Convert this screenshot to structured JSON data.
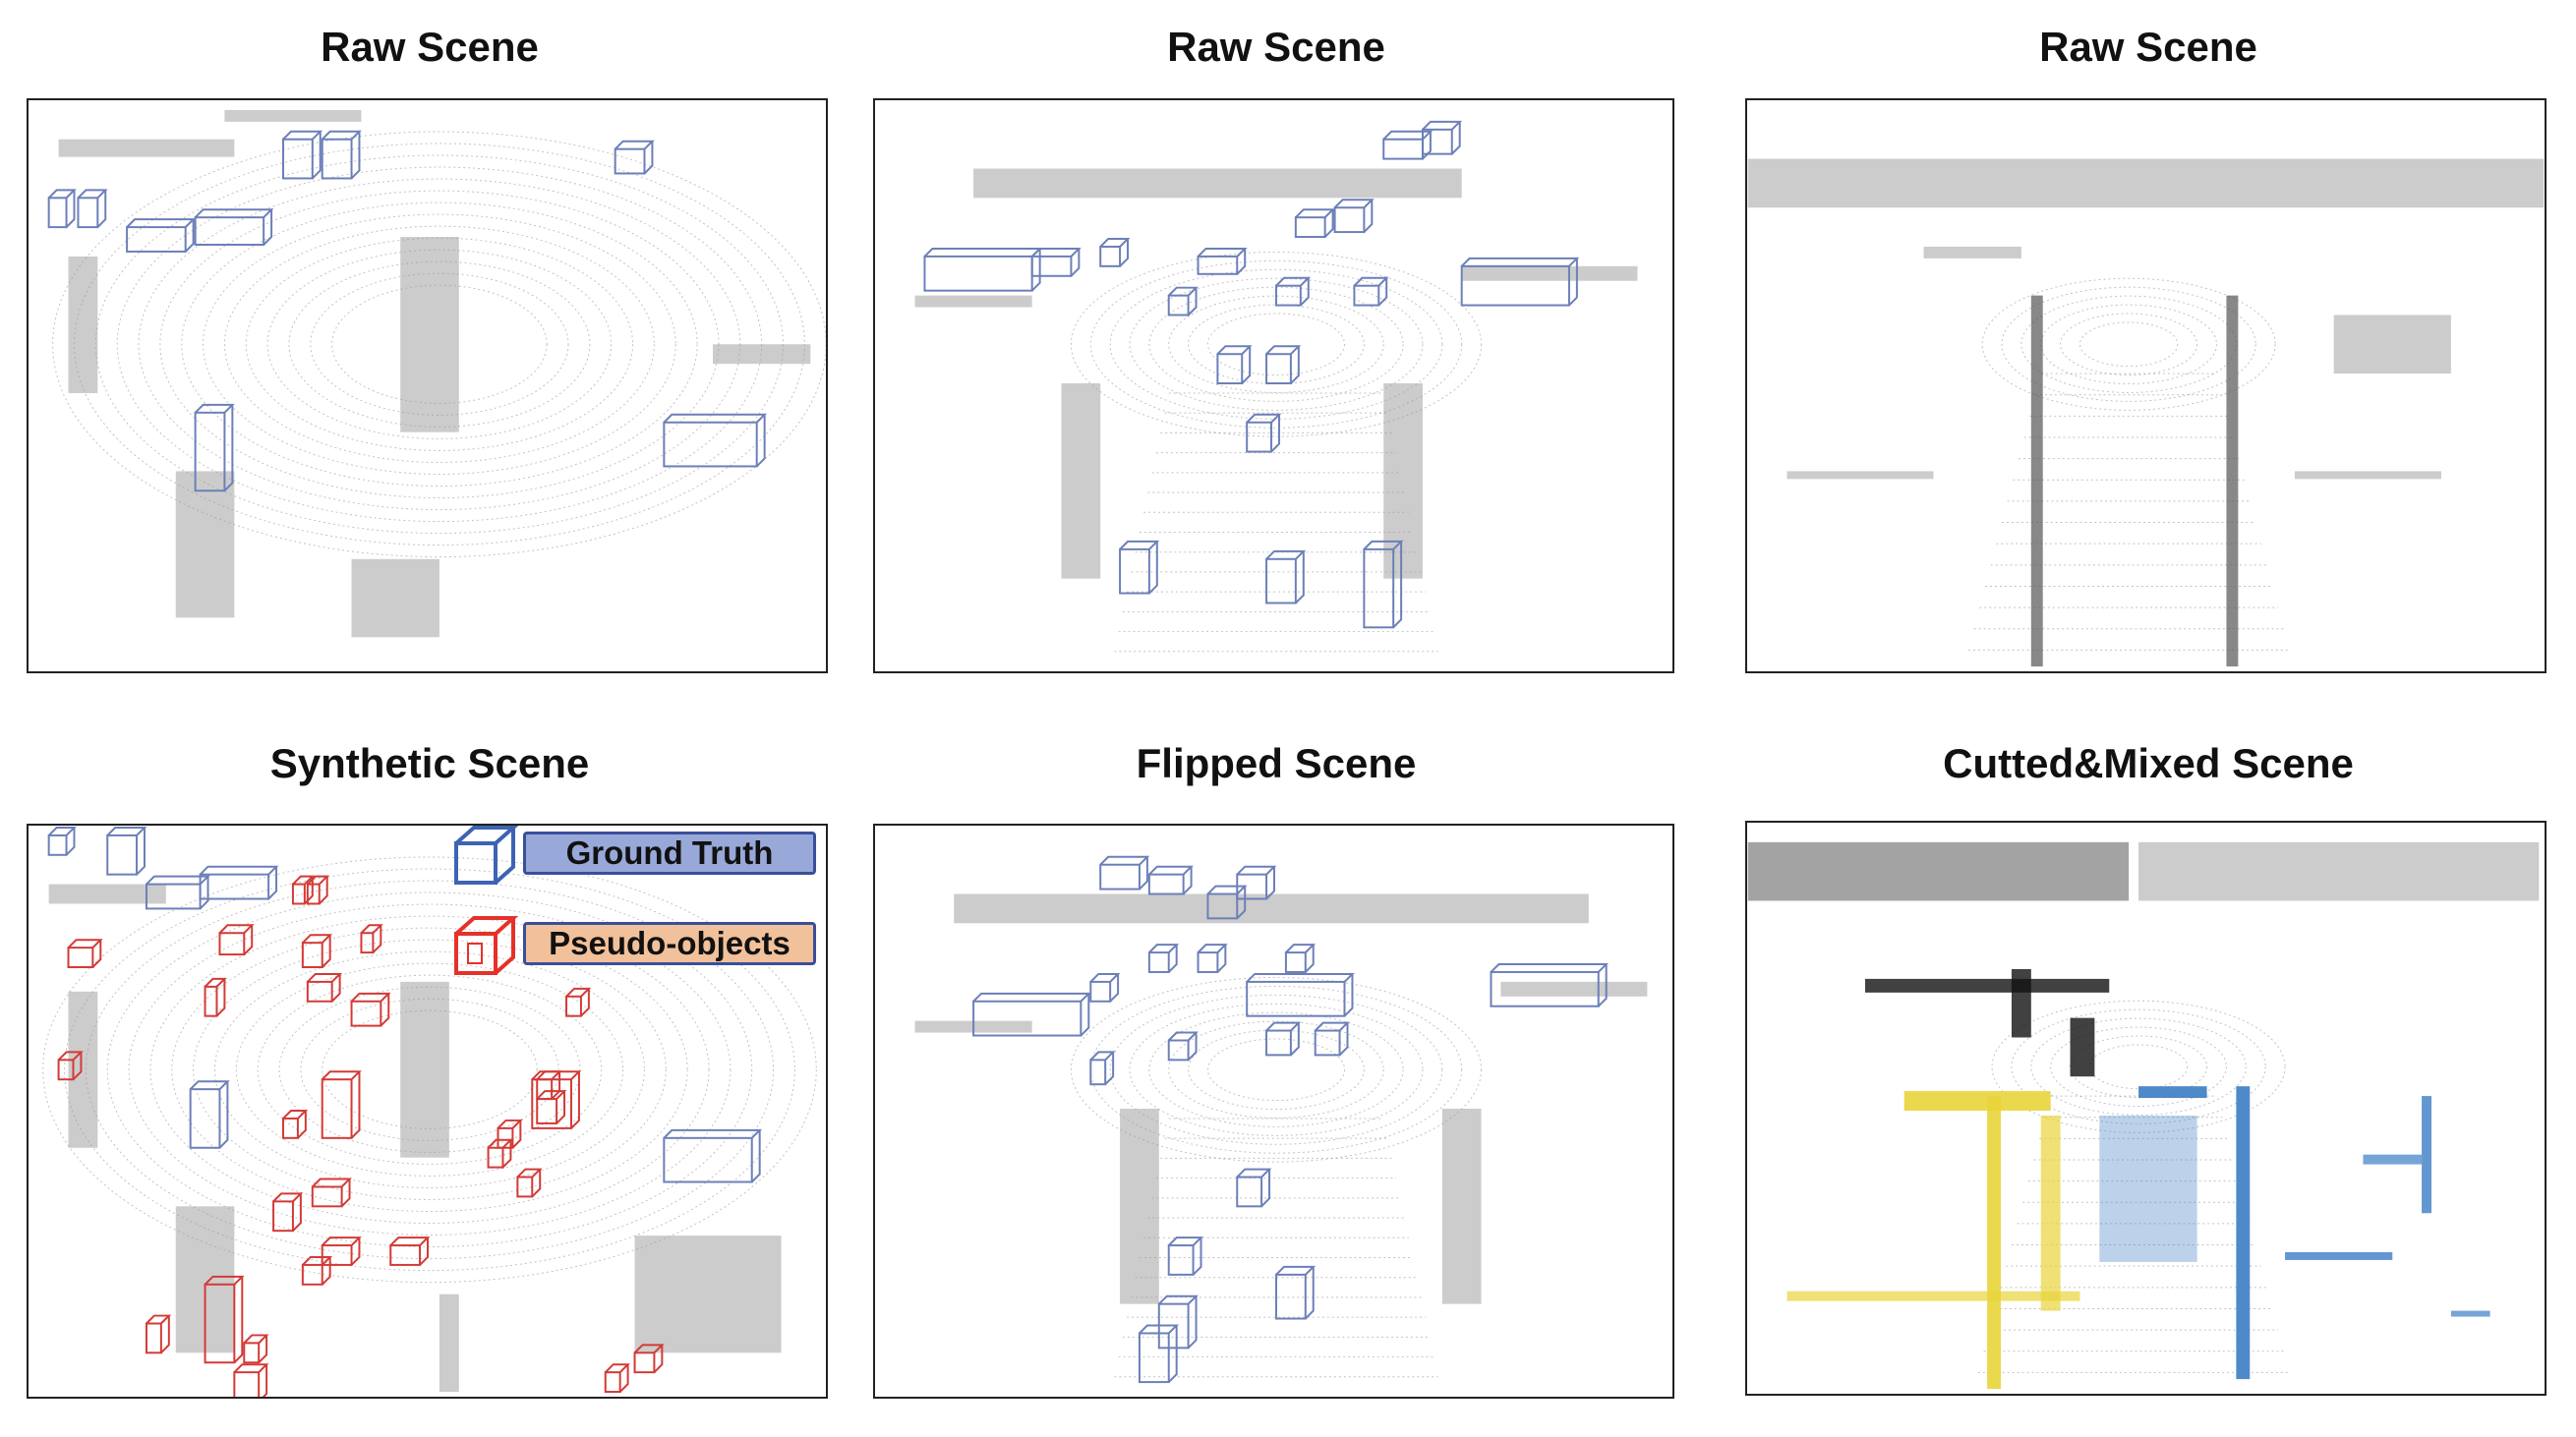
{
  "panels": [
    {
      "title": "Raw Scene"
    },
    {
      "title": "Raw Scene"
    },
    {
      "title": "Raw Scene"
    },
    {
      "title": "Synthetic Scene"
    },
    {
      "title": "Flipped Scene"
    },
    {
      "title": "Cutted&Mixed Scene"
    }
  ],
  "legend": {
    "ground_truth": {
      "label": "Ground Truth",
      "fill": "#98a8d8",
      "icon": "blue-cube-icon",
      "color": "#3d63b4"
    },
    "pseudo_objects": {
      "label": "Pseudo-objects",
      "fill": "#f1c19b",
      "icon": "red-cube-icon",
      "color": "#e5312a"
    }
  },
  "colors": {
    "points": "#9a9a9a",
    "ground_truth_box": "#6c7fb8",
    "pseudo_box": "#d33a36",
    "mix_yellow": "#e8d43a",
    "mix_blue": "#3b7dc4",
    "mix_black": "#111111"
  }
}
